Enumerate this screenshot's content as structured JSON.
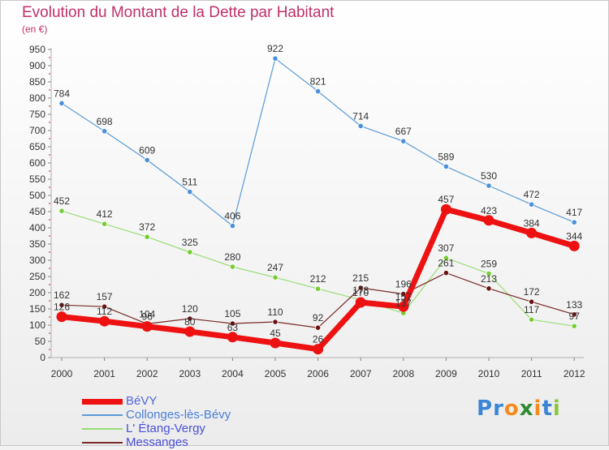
{
  "header": {
    "title": "Evolution du Montant de la Dette par Habitant",
    "subtitle": "(en €)"
  },
  "logo": {
    "letters": [
      {
        "char": "P",
        "color": "#3a86d6"
      },
      {
        "char": "r",
        "color": "#3a86d6"
      },
      {
        "char": "o",
        "color": "#f28c1e"
      },
      {
        "char": "x",
        "color": "#2e8b2e"
      },
      {
        "char": "i",
        "color": "#f28c1e"
      },
      {
        "char": "t",
        "color": "#3a86d6"
      },
      {
        "char": "i",
        "color": "#8cc63f"
      }
    ]
  },
  "chart_data": {
    "type": "line",
    "title": "Evolution du Montant de la Dette par Habitant",
    "subtitle": "(en €)",
    "xlabel": "",
    "ylabel": "",
    "x": [
      "2000",
      "2001",
      "2002",
      "2003",
      "2004",
      "2005",
      "2006",
      "2007",
      "2008",
      "2009",
      "2010",
      "2011",
      "2012"
    ],
    "ylim": [
      0,
      950
    ],
    "yticks": [
      0,
      50,
      100,
      150,
      200,
      250,
      300,
      350,
      400,
      450,
      500,
      550,
      600,
      650,
      700,
      750,
      800,
      850,
      900,
      950
    ],
    "grid": false,
    "legend_position": "bottom-left",
    "series": [
      {
        "name": "BéVY",
        "color": "#ee1111",
        "marker_color": "#ee1111",
        "width": 7,
        "marker_size": 6.5,
        "values": [
          126,
          112,
          96,
          80,
          63,
          45,
          26,
          170,
          157,
          457,
          423,
          384,
          344
        ],
        "labels": [
          "126",
          "112",
          "96",
          "80",
          "63",
          "45",
          "26",
          "170",
          "157",
          "457",
          "423",
          "384",
          "344"
        ]
      },
      {
        "name": "Collonges-lès-Bévy",
        "color": "#5b9bd5",
        "marker_color": "#4a90d9",
        "width": 1.2,
        "marker_size": 3.2,
        "values": [
          784,
          698,
          609,
          511,
          406,
          922,
          821,
          714,
          667,
          589,
          530,
          472,
          417
        ],
        "labels": [
          "784",
          "698",
          "609",
          "511",
          "406",
          "922",
          "821",
          "714",
          "667",
          "589",
          "530",
          "472",
          "417"
        ]
      },
      {
        "name": "L' Étang-Vergy",
        "color": "#99dd77",
        "marker_color": "#77cc33",
        "width": 1.2,
        "marker_size": 3.2,
        "values": [
          452,
          412,
          372,
          325,
          280,
          247,
          212,
          178,
          137,
          307,
          259,
          117,
          97
        ],
        "labels": [
          "452",
          "412",
          "372",
          "325",
          "280",
          "247",
          "212",
          "178",
          "137",
          "307",
          "259",
          "117",
          "97"
        ]
      },
      {
        "name": "Messanges",
        "color": "#7a2a2a",
        "marker_color": "#6b1212",
        "width": 1.2,
        "marker_size": 3.2,
        "values": [
          162,
          157,
          104,
          120,
          105,
          110,
          92,
          215,
          196,
          261,
          213,
          172,
          133
        ],
        "labels": [
          "162",
          "157",
          "104",
          "120",
          "105",
          "110",
          "92",
          "215",
          "196",
          "261",
          "213",
          "172",
          "133"
        ]
      }
    ]
  }
}
